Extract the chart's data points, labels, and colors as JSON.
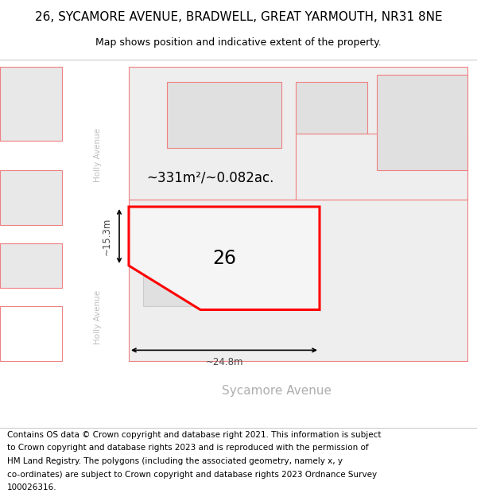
{
  "title_line1": "26, SYCAMORE AVENUE, BRADWELL, GREAT YARMOUTH, NR31 8NE",
  "title_line2": "Map shows position and indicative extent of the property.",
  "footer_lines": [
    "Contains OS data © Crown copyright and database right 2021. This information is subject",
    "to Crown copyright and database rights 2023 and is reproduced with the permission of",
    "HM Land Registry. The polygons (including the associated geometry, namely x, y",
    "co-ordinates) are subject to Crown copyright and database rights 2023 Ordnance Survey",
    "100026316."
  ],
  "area_label": "~331m²/~0.082ac.",
  "number_label": "26",
  "width_label": "~24.8m",
  "height_label": "~15.3m",
  "street_label": "Sycamore Avenue",
  "street_label_upper": "Holly Avenue",
  "street_label_lower": "Holly Avenue",
  "highlight_color": "#ff0000",
  "pink": "#f08080",
  "lt_gray": "#e0e0e0",
  "road_white": "#ffffff",
  "map_bg": "#f0f0f0",
  "title_fontsize": 11,
  "subtitle_fontsize": 9,
  "footer_fontsize": 7.5
}
